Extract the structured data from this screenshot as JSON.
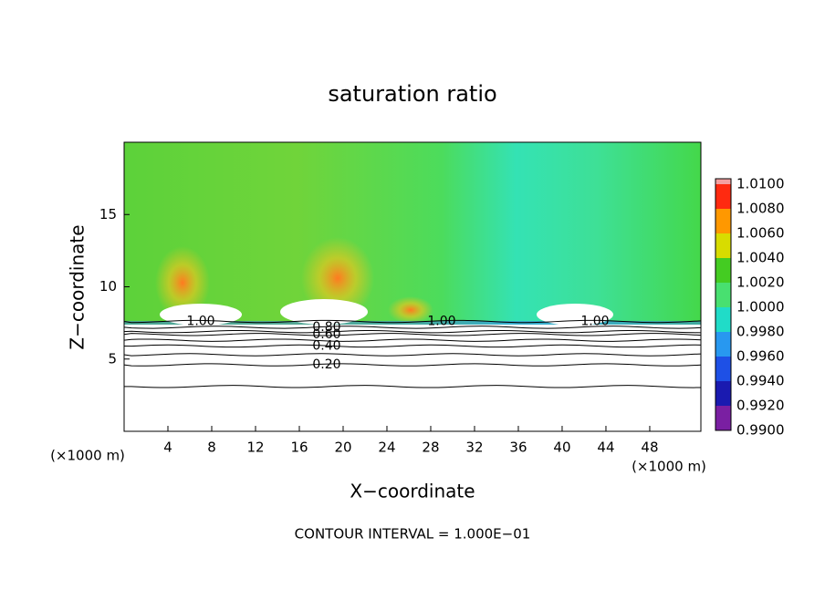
{
  "chart_data": {
    "type": "contour",
    "title": "saturation ratio",
    "xlabel": "X−coordinate",
    "ylabel": "Z−coordinate",
    "x_unit": "(×1000 m)",
    "footer": "CONTOUR INTERVAL = 1.000E−01",
    "xlim": [
      0,
      52.67
    ],
    "ylim": [
      0,
      20
    ],
    "xticks": [
      4,
      8,
      12,
      16,
      20,
      24,
      28,
      32,
      36,
      40,
      44,
      48
    ],
    "yticks": [
      5,
      10,
      15
    ],
    "colorbar": {
      "lim": [
        0.99,
        1.01
      ],
      "ticks": [
        {
          "value": 0.99,
          "label": "0.9900"
        },
        {
          "value": 0.992,
          "label": "0.9920"
        },
        {
          "value": 0.994,
          "label": "0.9940"
        },
        {
          "value": 0.996,
          "label": "0.9960"
        },
        {
          "value": 0.998,
          "label": "0.9980"
        },
        {
          "value": 1.0,
          "label": "1.0000"
        },
        {
          "value": 1.002,
          "label": "1.0020"
        },
        {
          "value": 1.004,
          "label": "1.0040"
        },
        {
          "value": 1.006,
          "label": "1.0060"
        },
        {
          "value": 1.008,
          "label": "1.0080"
        },
        {
          "value": 1.01,
          "label": "1.0100"
        }
      ],
      "colors": [
        "#7a1fa2",
        "#1a1ab0",
        "#1e50e6",
        "#2898f0",
        "#20dcc8",
        "#48e070",
        "#44cc22",
        "#d8dc00",
        "#ff9800",
        "#ff2a10",
        "#f4a0a0"
      ]
    },
    "contours": [
      {
        "level": 0.1,
        "z": 3.1
      },
      {
        "level": 0.2,
        "z": 4.6,
        "label": "0.20",
        "label_x": 18.5
      },
      {
        "level": 0.3,
        "z": 5.3
      },
      {
        "level": 0.4,
        "z": 5.9,
        "label": "0.40",
        "label_x": 18.5
      },
      {
        "level": 0.5,
        "z": 6.3
      },
      {
        "level": 0.6,
        "z": 6.7,
        "label": "0.60",
        "label_x": 18.5
      },
      {
        "level": 0.7,
        "z": 6.9
      },
      {
        "level": 0.8,
        "z": 7.2,
        "label": "0.80",
        "label_x": 18.5
      },
      {
        "level": 1.0,
        "z": 7.6,
        "label": "1.00",
        "label_x": [
          7,
          29,
          43
        ]
      }
    ]
  }
}
